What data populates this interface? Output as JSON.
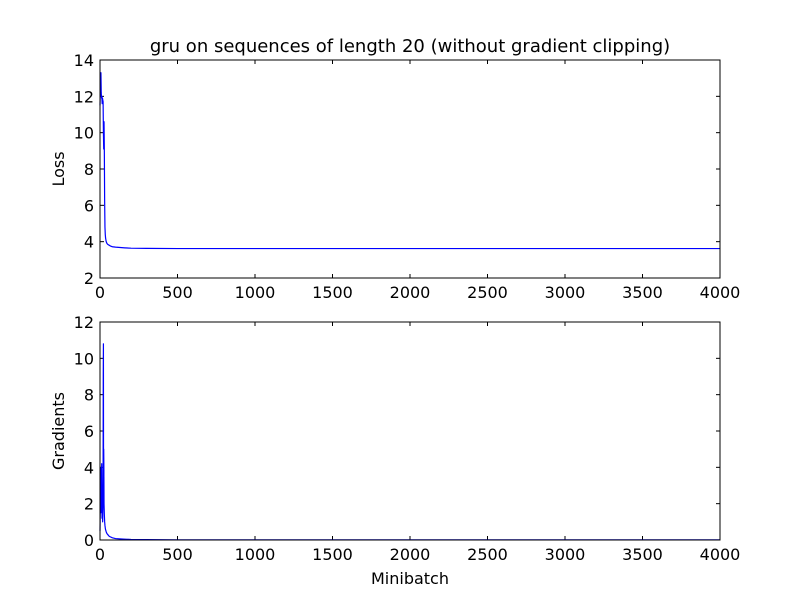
{
  "figure": {
    "title": "gru on sequences of length 20 (without gradient clipping)"
  },
  "chart_data": [
    {
      "type": "line",
      "title": "gru on sequences of length 20 (without gradient clipping)",
      "xlabel": "",
      "ylabel": "Loss",
      "xlim": [
        0,
        4000
      ],
      "ylim": [
        2,
        14
      ],
      "xticks": [
        0,
        500,
        1000,
        1500,
        2000,
        2500,
        3000,
        3500,
        4000
      ],
      "yticks": [
        2,
        4,
        6,
        8,
        10,
        12,
        14
      ],
      "grid": false,
      "color": "#0000ff",
      "series": [
        {
          "x": [
            0,
            3,
            6,
            8,
            10,
            12,
            14,
            16,
            18,
            20,
            22,
            24,
            26,
            28,
            30,
            32,
            34,
            36,
            40,
            45,
            50,
            60,
            70,
            80,
            100,
            130,
            160,
            200,
            300,
            500,
            1000,
            1500,
            2000,
            2500,
            3000,
            3500,
            4000
          ],
          "y": [
            11.5,
            12.8,
            13.3,
            12.2,
            11.9,
            12.0,
            11.6,
            11.9,
            11.8,
            11.7,
            10.0,
            9.1,
            10.6,
            9.0,
            6.2,
            4.8,
            4.4,
            4.2,
            4.0,
            3.9,
            3.85,
            3.8,
            3.75,
            3.72,
            3.7,
            3.68,
            3.66,
            3.64,
            3.63,
            3.62,
            3.62,
            3.62,
            3.62,
            3.62,
            3.62,
            3.62,
            3.62
          ]
        }
      ]
    },
    {
      "type": "line",
      "title": "",
      "xlabel": "Minibatch",
      "ylabel": "Gradients",
      "xlim": [
        0,
        4000
      ],
      "ylim": [
        0,
        12
      ],
      "xticks": [
        0,
        500,
        1000,
        1500,
        2000,
        2500,
        3000,
        3500,
        4000
      ],
      "yticks": [
        0,
        2,
        4,
        6,
        8,
        10,
        12
      ],
      "grid": false,
      "color": "#0000ff",
      "series": [
        {
          "x": [
            0,
            3,
            5,
            7,
            9,
            11,
            13,
            15,
            17,
            19,
            20,
            21,
            22,
            23,
            24,
            25,
            26,
            28,
            30,
            32,
            35,
            40,
            45,
            50,
            60,
            80,
            100,
            150,
            200,
            300,
            500,
            1000,
            2000,
            3000,
            4000
          ],
          "y": [
            0.5,
            2.5,
            1.5,
            4.0,
            2.0,
            4.2,
            1.2,
            2.8,
            1.0,
            1.8,
            4.0,
            9.0,
            10.8,
            3.0,
            5.0,
            4.0,
            2.0,
            1.4,
            1.0,
            0.8,
            0.6,
            0.45,
            0.35,
            0.3,
            0.2,
            0.12,
            0.08,
            0.05,
            0.03,
            0.02,
            0.01,
            0.01,
            0.01,
            0.01,
            0.01
          ]
        }
      ]
    }
  ]
}
